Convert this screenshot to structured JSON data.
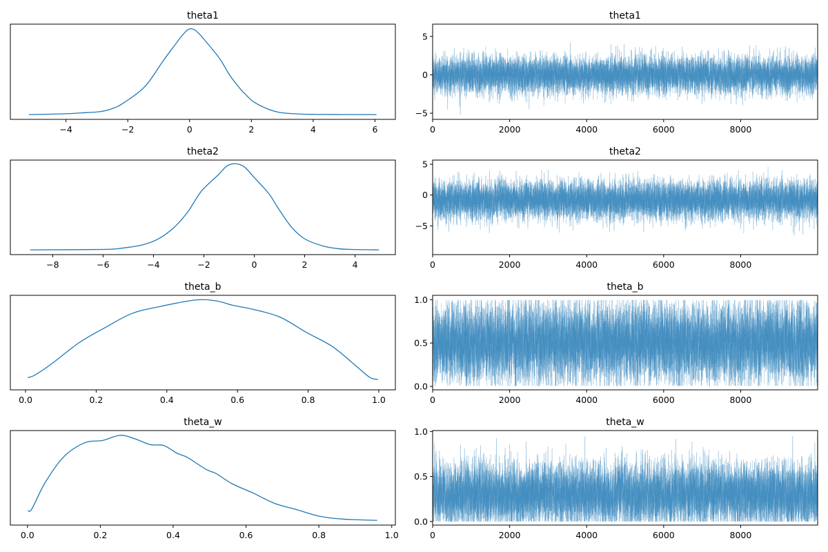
{
  "chart_data": {
    "type": "line",
    "layout": "trace-plot",
    "colors": {
      "line": "#1f77b4",
      "trace": "#1f77b4",
      "axes": "#000000"
    },
    "panels": [
      {
        "variable": "theta1",
        "kde": {
          "title": "theta1",
          "xlim": [
            -5.8,
            6.66
          ],
          "xticks": [
            -4,
            -2,
            0,
            2,
            4,
            6
          ],
          "xtick_labels": [
            "−4",
            "−2",
            "0",
            "2",
            "4",
            "6"
          ],
          "x": [
            -5.2,
            -4.0,
            -3.5,
            -2.89,
            -2.5,
            -2.12,
            -1.44,
            -0.85,
            -0.5,
            -0.2,
            0.0,
            0.2,
            0.44,
            0.96,
            1.3,
            1.64,
            1.8,
            2.07,
            2.5,
            2.92,
            3.5,
            4.03,
            5.0,
            6.05
          ],
          "density": [
            0.0,
            0.01,
            0.02,
            0.035,
            0.07,
            0.14,
            0.33,
            0.63,
            0.8,
            0.94,
            1.0,
            0.98,
            0.89,
            0.66,
            0.46,
            0.3,
            0.24,
            0.15,
            0.07,
            0.025,
            0.008,
            0.003,
            0.001,
            0.0
          ]
        },
        "trace": {
          "title": "theta1",
          "xlim": [
            0,
            9999
          ],
          "ylim": [
            -5.8,
            6.6
          ],
          "xticks": [
            0,
            2000,
            4000,
            6000,
            8000
          ],
          "xtick_labels": [
            "0",
            "2000",
            "4000",
            "6000",
            "8000"
          ],
          "yticks": [
            -5,
            0,
            5
          ],
          "ytick_labels": [
            "−5",
            "0",
            "5"
          ],
          "n_draws": 10000,
          "mean": 0.0,
          "sd": 1.15,
          "min": -5.2,
          "max": 6.05
        }
      },
      {
        "variable": "theta2",
        "kde": {
          "title": "theta2",
          "xlim": [
            -9.68,
            5.6
          ],
          "xticks": [
            -8,
            -6,
            -4,
            -2,
            0,
            2,
            4
          ],
          "xtick_labels": [
            "−8",
            "−6",
            "−4",
            "−2",
            "0",
            "2",
            "4"
          ],
          "x": [
            -8.9,
            -6.0,
            -5.26,
            -4.42,
            -3.8,
            -3.16,
            -2.63,
            -2.1,
            -1.47,
            -1.0,
            -0.47,
            0.0,
            0.58,
            0.95,
            1.47,
            2.0,
            2.74,
            3.37,
            4.0,
            4.95
          ],
          "density": [
            0.0,
            0.005,
            0.02,
            0.06,
            0.13,
            0.27,
            0.45,
            0.69,
            0.87,
            1.0,
            0.99,
            0.85,
            0.66,
            0.49,
            0.27,
            0.13,
            0.045,
            0.013,
            0.004,
            0.0
          ]
        },
        "trace": {
          "title": "theta2",
          "xlim": [
            0,
            9999
          ],
          "ylim": [
            -9.66,
            5.67
          ],
          "xticks": [
            0,
            2000,
            4000,
            6000,
            8000
          ],
          "xtick_labels": [
            "0",
            "2000",
            "4000",
            "6000",
            "8000"
          ],
          "yticks": [
            -5,
            0,
            5
          ],
          "ytick_labels": [
            "−5",
            "0",
            "5"
          ],
          "n_draws": 10000,
          "mean": -0.8,
          "sd": 1.5,
          "min": -8.9,
          "max": 4.95
        }
      },
      {
        "variable": "theta_b",
        "kde": {
          "title": "theta_b",
          "xlim": [
            -0.043,
            1.047
          ],
          "xticks": [
            0.0,
            0.2,
            0.4,
            0.6,
            0.8,
            1.0
          ],
          "xtick_labels": [
            "0.0",
            "0.2",
            "0.4",
            "0.6",
            "0.8",
            "1.0"
          ],
          "x": [
            0.006,
            0.025,
            0.077,
            0.152,
            0.227,
            0.3,
            0.376,
            0.48,
            0.54,
            0.585,
            0.645,
            0.72,
            0.795,
            0.87,
            0.937,
            0.975,
            0.998
          ],
          "density": [
            0.09,
            0.115,
            0.26,
            0.5,
            0.68,
            0.84,
            0.92,
            1.0,
            0.99,
            0.94,
            0.89,
            0.8,
            0.62,
            0.45,
            0.22,
            0.09,
            0.066
          ]
        },
        "trace": {
          "title": "theta_b",
          "xlim": [
            0,
            9999
          ],
          "ylim": [
            -0.04,
            1.05
          ],
          "xticks": [
            0,
            2000,
            4000,
            6000,
            8000
          ],
          "xtick_labels": [
            "0",
            "2000",
            "4000",
            "6000",
            "8000"
          ],
          "yticks": [
            0.0,
            0.5,
            1.0
          ],
          "ytick_labels": [
            "0.0",
            "0.5",
            "1.0"
          ],
          "n_draws": 10000,
          "mean": 0.5,
          "sd": 0.22,
          "min": 0.005,
          "max": 0.995
        }
      },
      {
        "variable": "theta_w",
        "kde": {
          "title": "theta_w",
          "xlim": [
            -0.047,
            1.01
          ],
          "xticks": [
            0.0,
            0.2,
            0.4,
            0.6,
            0.8,
            1.0
          ],
          "xtick_labels": [
            "0.0",
            "0.2",
            "0.4",
            "0.6",
            "0.8",
            "1.0"
          ],
          "x": [
            0.001,
            0.012,
            0.048,
            0.098,
            0.156,
            0.207,
            0.254,
            0.294,
            0.337,
            0.374,
            0.41,
            0.439,
            0.49,
            0.518,
            0.562,
            0.62,
            0.678,
            0.736,
            0.8,
            0.866,
            0.96
          ],
          "density": [
            0.115,
            0.135,
            0.44,
            0.74,
            0.91,
            0.94,
            1.0,
            0.96,
            0.89,
            0.88,
            0.79,
            0.74,
            0.6,
            0.55,
            0.43,
            0.32,
            0.2,
            0.13,
            0.05,
            0.015,
            0.0
          ]
        },
        "trace": {
          "title": "theta_w",
          "xlim": [
            0,
            9999
          ],
          "ylim": [
            -0.04,
            1.01
          ],
          "xticks": [
            0,
            2000,
            4000,
            6000,
            8000
          ],
          "xtick_labels": [
            "0",
            "2000",
            "4000",
            "6000",
            "8000"
          ],
          "yticks": [
            0.0,
            0.5,
            1.0
          ],
          "ytick_labels": [
            "0.0",
            "0.5",
            "1.0"
          ],
          "n_draws": 10000,
          "mean": 0.3,
          "sd": 0.17,
          "min": 0.0,
          "max": 0.96
        }
      }
    ]
  }
}
